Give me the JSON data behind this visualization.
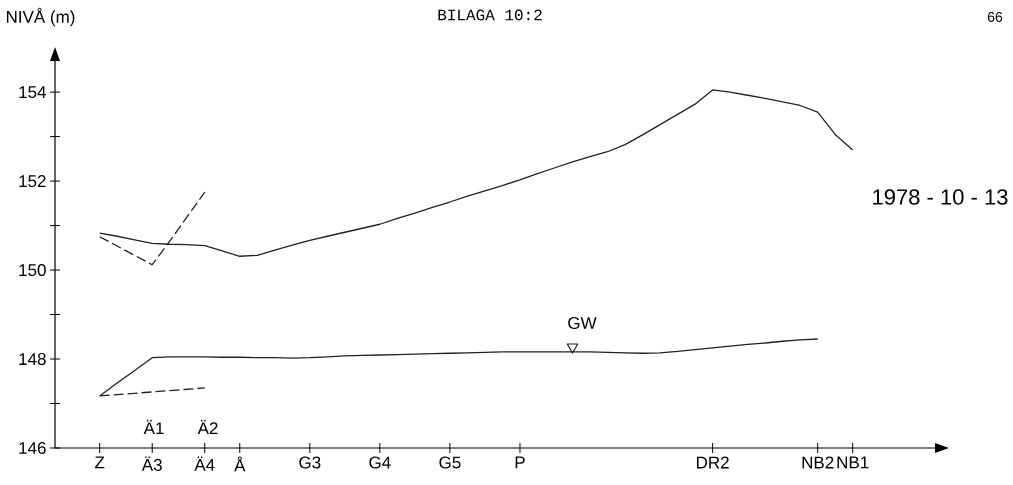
{
  "chart_data": {
    "type": "line",
    "title": "BILAGA 10:2",
    "ylabel": "NIVÅ (m)",
    "ylim": [
      146,
      154.7
    ],
    "categories": [
      "Z",
      null,
      null,
      "Ä3",
      null,
      null,
      "Ä4",
      null,
      "Å",
      null,
      null,
      null,
      "G3",
      null,
      null,
      null,
      "G4",
      null,
      null,
      null,
      "G5",
      null,
      null,
      null,
      "P",
      null,
      null,
      null,
      null,
      null,
      null,
      null,
      null,
      null,
      null,
      "DR2",
      null,
      null,
      null,
      null,
      null,
      "NB2",
      null,
      "NB1"
    ],
    "yticks": [
      146,
      148,
      150,
      152,
      154
    ],
    "series": [
      {
        "values": [
          150.83,
          150.76,
          150.68,
          150.6,
          150.58,
          150.57,
          150.55,
          150.43,
          150.31,
          150.33,
          150.45,
          150.56,
          150.67,
          150.76,
          150.85,
          150.94,
          151.03,
          151.16,
          151.28,
          151.41,
          151.53,
          151.66,
          151.78,
          151.9,
          152.03,
          152.17,
          152.3,
          152.43,
          152.55,
          152.66,
          152.82,
          153.04,
          153.27,
          153.5,
          153.73,
          154.05,
          154.0,
          153.93,
          153.86,
          153.78,
          153.7,
          153.55,
          153.05,
          152.7
        ],
        "color": "#222222",
        "line_style": "solid",
        "marker": "none"
      },
      {
        "values": [
          150.75,
          150.54,
          150.33,
          150.12,
          150.65,
          151.2,
          151.75,
          null,
          null,
          null,
          null,
          null,
          null,
          null,
          null,
          null,
          null,
          null,
          null,
          null,
          null,
          null,
          null,
          null,
          null,
          null,
          null,
          null,
          null,
          null,
          null,
          null,
          null,
          null,
          null,
          null,
          null,
          null,
          null,
          null,
          null,
          null,
          null,
          null
        ],
        "color": "#222222",
        "line_style": "dashed",
        "marker": "none"
      },
      {
        "values": [
          147.17,
          147.46,
          147.74,
          148.03,
          148.05,
          148.05,
          148.05,
          148.04,
          148.04,
          148.03,
          148.03,
          148.02,
          148.03,
          148.05,
          148.07,
          148.08,
          148.09,
          148.1,
          148.11,
          148.12,
          148.13,
          148.14,
          148.15,
          148.16,
          148.16,
          148.16,
          148.16,
          148.16,
          148.16,
          148.15,
          148.14,
          148.13,
          148.14,
          148.17,
          148.21,
          148.25,
          148.29,
          148.33,
          148.36,
          148.4,
          148.43,
          148.45,
          null,
          null
        ],
        "color": "#222222",
        "line_style": "solid",
        "marker": "none"
      },
      {
        "values": [
          147.17,
          147.2,
          147.23,
          147.26,
          147.29,
          147.32,
          147.35,
          null,
          null,
          null,
          null,
          null,
          null,
          null,
          null,
          null,
          null,
          null,
          null,
          null,
          null,
          null,
          null,
          null,
          null,
          null,
          null,
          null,
          null,
          null,
          null,
          null,
          null,
          null,
          null,
          null,
          null,
          null,
          null,
          null,
          null,
          null,
          null,
          null
        ],
        "color": "#222222",
        "line_style": "dashed",
        "marker": "none"
      },
      {
        "type": "scatter",
        "values": [
          null,
          null,
          null,
          null,
          null,
          null,
          null,
          null,
          null,
          null,
          null,
          null,
          null,
          null,
          null,
          null,
          null,
          null,
          null,
          null,
          null,
          null,
          null,
          null,
          null,
          null,
          null,
          148.27,
          null,
          null,
          null,
          null,
          null,
          null,
          null,
          null,
          null,
          null,
          null,
          null,
          null,
          null,
          null,
          null
        ],
        "color": "#222222",
        "marker": "triangle"
      }
    ],
    "annotations": [
      "GW",
      "Ä1",
      "Ä2",
      "1978 - 10 - 13",
      "66"
    ],
    "grid": false
  }
}
